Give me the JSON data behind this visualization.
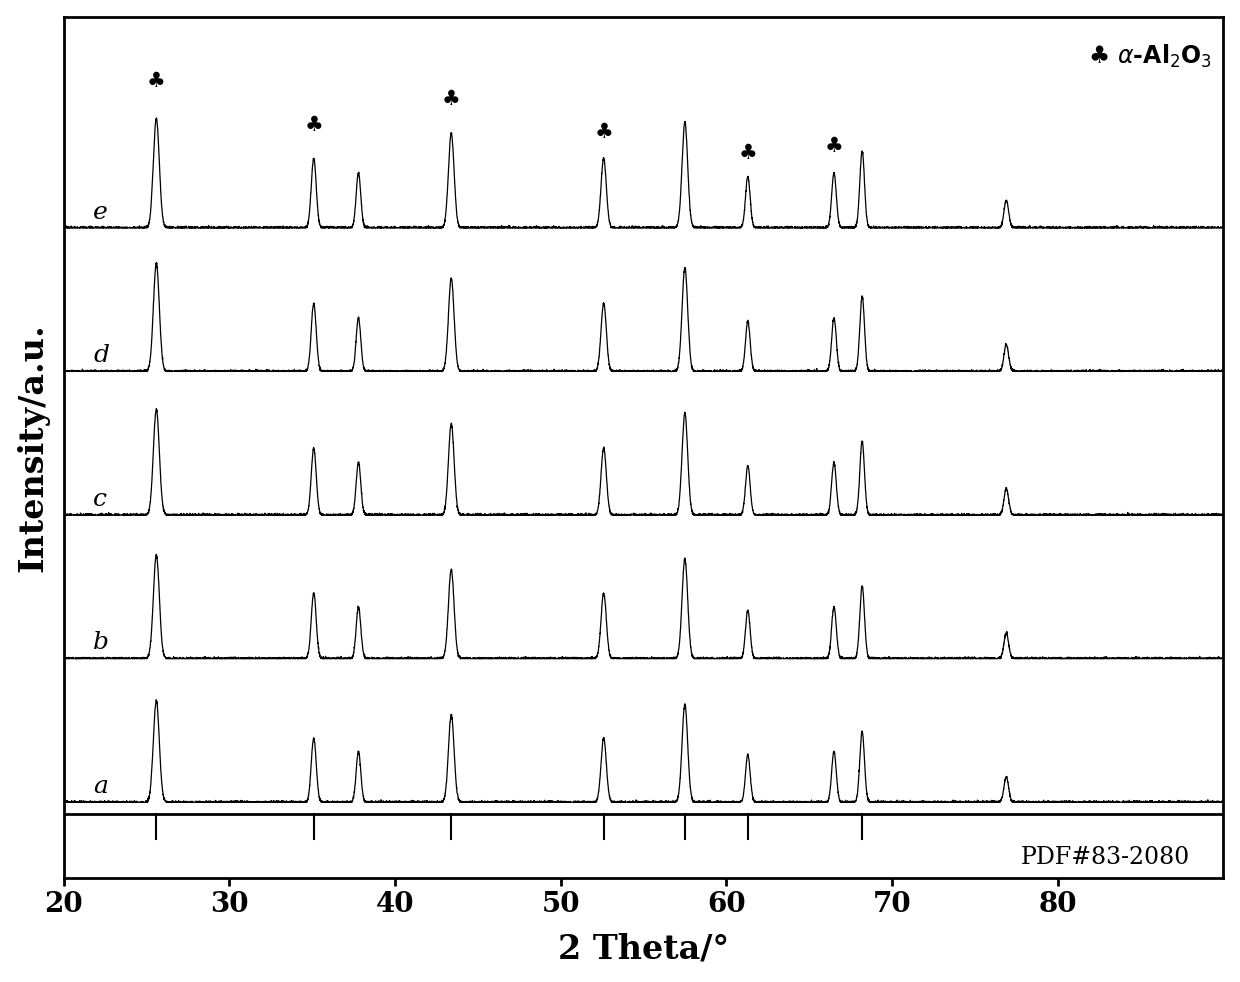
{
  "x_min": 20,
  "x_max": 90,
  "x_ticks": [
    20,
    30,
    40,
    50,
    60,
    70,
    80
  ],
  "xlabel": "2 Theta/°",
  "ylabel": "Intensity/a.u.",
  "background_color": "#ffffff",
  "line_color": "#000000",
  "series_labels": [
    "a",
    "b",
    "c",
    "d",
    "e"
  ],
  "series_offsets": [
    0.0,
    0.85,
    1.7,
    2.55,
    3.4
  ],
  "peak_positions": [
    25.6,
    35.1,
    37.8,
    43.4,
    52.6,
    57.5,
    61.3,
    66.5,
    68.2,
    76.9
  ],
  "peak_heights": [
    0.6,
    0.38,
    0.3,
    0.52,
    0.38,
    0.58,
    0.28,
    0.3,
    0.42,
    0.15
  ],
  "peak_widths": [
    0.18,
    0.15,
    0.14,
    0.17,
    0.16,
    0.17,
    0.14,
    0.14,
    0.14,
    0.14
  ],
  "pdf_tick_positions": [
    25.6,
    35.1,
    43.4,
    52.6,
    57.5,
    61.3,
    68.2
  ],
  "club_positions": [
    25.6,
    35.1,
    43.4,
    52.6,
    61.3,
    66.5
  ],
  "pdf_label": "PDF#83-2080",
  "axis_fontsize": 24,
  "tick_fontsize": 20,
  "label_fontsize": 17,
  "series_label_fontsize": 18,
  "club_fontsize": 15,
  "legend_fontsize": 17
}
